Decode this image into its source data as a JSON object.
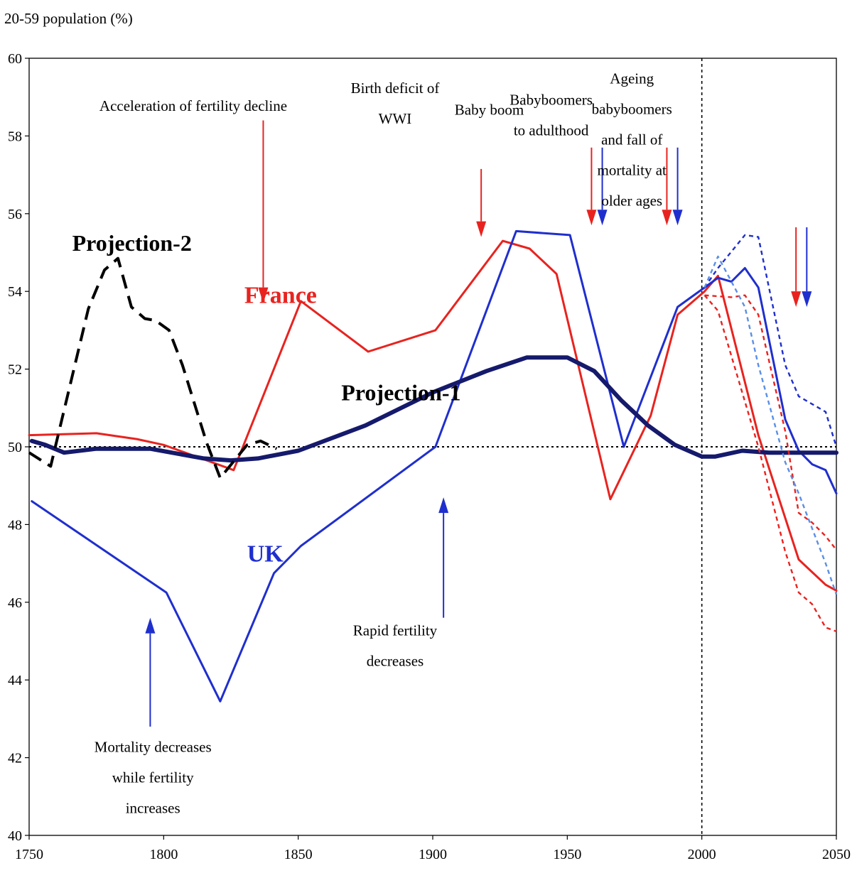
{
  "chart_data": {
    "type": "line",
    "ylabel": "20-59 population (%)",
    "xlim": [
      1750,
      2050
    ],
    "ylim": [
      40,
      60
    ],
    "x_ticks": [
      "1750",
      "1800",
      "1850",
      "1900",
      "1950",
      "2000",
      "2050"
    ],
    "y_ticks": [
      "40",
      "42",
      "44",
      "46",
      "48",
      "50",
      "52",
      "54",
      "56",
      "58",
      "60"
    ],
    "reference_line_y": 50,
    "divider_x": 2000,
    "grid": false,
    "series": [
      {
        "name": "France",
        "color": "#e8231f",
        "style": "solid",
        "points": [
          [
            1750,
            50.3
          ],
          [
            1775,
            50.35
          ],
          [
            1790,
            50.2
          ],
          [
            1800,
            50.05
          ],
          [
            1810,
            49.8
          ],
          [
            1826,
            49.4
          ],
          [
            1851,
            53.75
          ],
          [
            1876,
            52.45
          ],
          [
            1901,
            53.0
          ],
          [
            1926,
            55.3
          ],
          [
            1936,
            55.1
          ],
          [
            1946,
            54.45
          ],
          [
            1966,
            48.65
          ],
          [
            1981,
            50.8
          ],
          [
            1991,
            53.4
          ],
          [
            2001,
            54.0
          ],
          [
            2006,
            54.4
          ],
          [
            2021,
            50.3
          ],
          [
            2036,
            47.1
          ],
          [
            2046,
            46.45
          ],
          [
            2050,
            46.3
          ]
        ]
      },
      {
        "name": "UK",
        "color": "#1f2fce",
        "style": "solid",
        "points": [
          [
            1751,
            48.6
          ],
          [
            1801,
            46.25
          ],
          [
            1821,
            43.45
          ],
          [
            1841,
            46.75
          ],
          [
            1851,
            47.45
          ],
          [
            1901,
            50.0
          ],
          [
            1931,
            55.55
          ],
          [
            1951,
            55.45
          ],
          [
            1971,
            50.0
          ],
          [
            1991,
            53.6
          ],
          [
            2006,
            54.35
          ],
          [
            2011,
            54.25
          ],
          [
            2016,
            54.6
          ],
          [
            2021,
            54.1
          ],
          [
            2031,
            50.7
          ],
          [
            2036,
            49.9
          ],
          [
            2041,
            49.55
          ],
          [
            2046,
            49.4
          ],
          [
            2050,
            48.8
          ]
        ]
      },
      {
        "name": "Projection-1",
        "color": "#151a6c",
        "style": "bold",
        "points": [
          [
            1751,
            50.15
          ],
          [
            1756,
            50.05
          ],
          [
            1763,
            49.85
          ],
          [
            1775,
            49.95
          ],
          [
            1795,
            49.95
          ],
          [
            1815,
            49.7
          ],
          [
            1825,
            49.65
          ],
          [
            1835,
            49.7
          ],
          [
            1850,
            49.9
          ],
          [
            1875,
            50.55
          ],
          [
            1900,
            51.4
          ],
          [
            1920,
            51.95
          ],
          [
            1935,
            52.3
          ],
          [
            1950,
            52.3
          ],
          [
            1960,
            51.95
          ],
          [
            1970,
            51.2
          ],
          [
            1980,
            50.55
          ],
          [
            1990,
            50.05
          ],
          [
            2000,
            49.75
          ],
          [
            2005,
            49.75
          ],
          [
            2015,
            49.9
          ],
          [
            2025,
            49.85
          ],
          [
            2035,
            49.85
          ],
          [
            2050,
            49.85
          ]
        ]
      },
      {
        "name": "Projection-2",
        "color": "#000000",
        "style": "dash",
        "points": [
          [
            1750,
            49.85
          ],
          [
            1758,
            49.5
          ],
          [
            1772,
            53.55
          ],
          [
            1778,
            54.55
          ],
          [
            1783,
            54.85
          ],
          [
            1788,
            53.6
          ],
          [
            1793,
            53.3
          ],
          [
            1797,
            53.25
          ],
          [
            1802,
            53.0
          ],
          [
            1807,
            52.1
          ],
          [
            1816,
            50.1
          ],
          [
            1821,
            49.2
          ],
          [
            1831,
            50.05
          ],
          [
            1836,
            50.15
          ],
          [
            1842,
            49.95
          ]
        ]
      },
      {
        "name": "France projection A",
        "color": "#e8231f",
        "style": "dash",
        "points": [
          [
            2001,
            53.9
          ],
          [
            2011,
            53.85
          ],
          [
            2016,
            53.9
          ],
          [
            2021,
            53.4
          ],
          [
            2031,
            50.4
          ],
          [
            2036,
            48.3
          ],
          [
            2041,
            48.05
          ],
          [
            2046,
            47.7
          ],
          [
            2050,
            47.35
          ]
        ]
      },
      {
        "name": "France projection B",
        "color": "#e8231f",
        "style": "dash",
        "points": [
          [
            2001,
            53.9
          ],
          [
            2006,
            53.5
          ],
          [
            2021,
            50.0
          ],
          [
            2031,
            47.3
          ],
          [
            2036,
            46.25
          ],
          [
            2041,
            45.95
          ],
          [
            2046,
            45.35
          ],
          [
            2050,
            45.25
          ]
        ]
      },
      {
        "name": "UK projection A",
        "color": "#1f2fce",
        "style": "dash",
        "points": [
          [
            2001,
            54.1
          ],
          [
            2006,
            54.6
          ],
          [
            2016,
            55.45
          ],
          [
            2021,
            55.4
          ],
          [
            2031,
            52.1
          ],
          [
            2036,
            51.3
          ],
          [
            2046,
            50.9
          ],
          [
            2050,
            50.0
          ]
        ]
      },
      {
        "name": "UK projection B",
        "color": "#5b8fe6",
        "style": "dash",
        "points": [
          [
            2001,
            54.1
          ],
          [
            2006,
            54.9
          ],
          [
            2016,
            53.6
          ],
          [
            2021,
            52.1
          ],
          [
            2031,
            49.6
          ],
          [
            2036,
            48.8
          ],
          [
            2041,
            47.9
          ],
          [
            2046,
            47.0
          ],
          [
            2050,
            46.2
          ]
        ]
      }
    ],
    "labels": [
      {
        "text": "France",
        "color": "#e8231f",
        "x": 1830,
        "y": 53.7,
        "size": 34
      },
      {
        "text": "UK",
        "color": "#1f2fce",
        "x": 1831,
        "y": 47.05,
        "size": 34
      },
      {
        "text": "Projection-1",
        "color": "#000000",
        "x": 1866,
        "y": 51.2,
        "size": 32
      },
      {
        "text": "Projection-2",
        "color": "#000000",
        "x": 1766,
        "y": 55.05,
        "size": 32
      }
    ],
    "annotations": [
      {
        "lines": [
          "Acceleration of fertility decline"
        ],
        "x": 1811,
        "y": 58.65
      },
      {
        "lines": [
          "Birth deficit of",
          "WWI"
        ],
        "x": 1886,
        "y": 59.1
      },
      {
        "lines": [
          "Baby boom"
        ],
        "x": 1921,
        "y": 58.55
      },
      {
        "lines": [
          "Babyboomers",
          "to adulthood"
        ],
        "x": 1944,
        "y": 58.8
      },
      {
        "lines": [
          "Ageing",
          "babyboomers",
          "and fall of",
          "mortality at",
          "older ages"
        ],
        "x": 1974,
        "y": 59.35
      },
      {
        "lines": [
          "Rapid fertility",
          "decreases"
        ],
        "x": 1886,
        "y": 45.15
      },
      {
        "lines": [
          "Mortality decreases",
          "while fertility",
          "increases"
        ],
        "x": 1796,
        "y": 42.15
      }
    ],
    "arrows": [
      {
        "color": "#e8231f",
        "x": 1837,
        "from": 58.4,
        "to": 53.7
      },
      {
        "color": "#e8231f",
        "x": 1918,
        "from": 57.15,
        "to": 55.4
      },
      {
        "color": "#e8231f",
        "x": 1959,
        "from": 57.7,
        "to": 55.7
      },
      {
        "color": "#1f2fce",
        "x": 1963,
        "from": 57.7,
        "to": 55.7
      },
      {
        "color": "#e8231f",
        "x": 1987,
        "from": 57.7,
        "to": 55.7
      },
      {
        "color": "#1f2fce",
        "x": 1991,
        "from": 57.7,
        "to": 55.7
      },
      {
        "color": "#e8231f",
        "x": 2035,
        "from": 55.65,
        "to": 53.6
      },
      {
        "color": "#1f2fce",
        "x": 2039,
        "from": 55.65,
        "to": 53.6
      },
      {
        "color": "#1f2fce",
        "x": 1904,
        "from": 45.6,
        "to": 48.7
      },
      {
        "color": "#1f2fce",
        "x": 1795,
        "from": 42.8,
        "to": 45.6
      }
    ]
  }
}
